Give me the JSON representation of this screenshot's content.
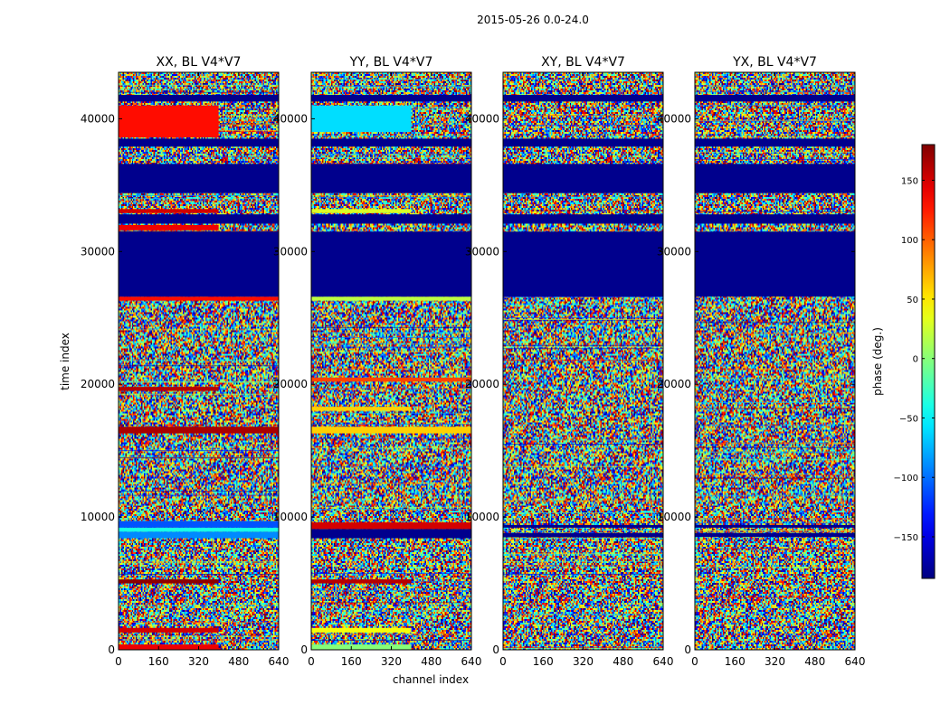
{
  "chart_data": {
    "type": "heatmap",
    "suptitle": "2015-05-26 0.0-24.0",
    "x_label": "channel index",
    "y_label": "time index",
    "x_range": [
      0,
      640
    ],
    "y_range": [
      0,
      43500
    ],
    "x_ticks": [
      0,
      160,
      320,
      480,
      640
    ],
    "y_ticks": [
      0,
      10000,
      20000,
      30000,
      40000
    ],
    "panels": [
      {
        "title": "XX, BL V4*V7",
        "bands": [
          {
            "y0": 0,
            "y1": 400,
            "value": 140,
            "x1": 400
          },
          {
            "y0": 1300,
            "y1": 1650,
            "value": 150,
            "x1": 400
          },
          {
            "y0": 5000,
            "y1": 5300,
            "value": 175,
            "x1": 400
          },
          {
            "y0": 8400,
            "y1": 8900,
            "value": -90,
            "x1": 640
          },
          {
            "y0": 8900,
            "y1": 9200,
            "value": -40,
            "x1": 640
          },
          {
            "y0": 9200,
            "y1": 9700,
            "value": -110,
            "x1": 640
          },
          {
            "y0": 16300,
            "y1": 16800,
            "value": 165,
            "x1": 640
          },
          {
            "y0": 19500,
            "y1": 19800,
            "value": 160,
            "x1": 400
          },
          {
            "y0": 26300,
            "y1": 26600,
            "value": 130,
            "x1": 640
          },
          {
            "y0": 26600,
            "y1": 31500,
            "value": -180,
            "x1": 640
          },
          {
            "y0": 31600,
            "y1": 32000,
            "value": 140,
            "x1": 400
          },
          {
            "y0": 32100,
            "y1": 32800,
            "value": -180,
            "x1": 640
          },
          {
            "y0": 32900,
            "y1": 33200,
            "value": 150,
            "x1": 400
          },
          {
            "y0": 34400,
            "y1": 36600,
            "value": -180,
            "x1": 640
          },
          {
            "y0": 37900,
            "y1": 38500,
            "value": -180,
            "x1": 640
          },
          {
            "y0": 38600,
            "y1": 41000,
            "value": 130,
            "x1": 400
          },
          {
            "y0": 41300,
            "y1": 41800,
            "value": -180,
            "x1": 640
          }
        ]
      },
      {
        "title": "YY, BL V4*V7",
        "bands": [
          {
            "y0": 0,
            "y1": 400,
            "value": 0,
            "x1": 400
          },
          {
            "y0": 1300,
            "y1": 1650,
            "value": 40,
            "x1": 400
          },
          {
            "y0": 5000,
            "y1": 5300,
            "value": 160,
            "x1": 400
          },
          {
            "y0": 8400,
            "y1": 9100,
            "value": -180,
            "x1": 640
          },
          {
            "y0": 9100,
            "y1": 9600,
            "value": 150,
            "x1": 640
          },
          {
            "y0": 16300,
            "y1": 16800,
            "value": 60,
            "x1": 640
          },
          {
            "y0": 18000,
            "y1": 18300,
            "value": 60,
            "x1": 400
          },
          {
            "y0": 20200,
            "y1": 20500,
            "value": 110,
            "x1": 640
          },
          {
            "y0": 26300,
            "y1": 26600,
            "value": 20,
            "x1": 640
          },
          {
            "y0": 26600,
            "y1": 31500,
            "value": -180,
            "x1": 640
          },
          {
            "y0": 32100,
            "y1": 32800,
            "value": -180,
            "x1": 640
          },
          {
            "y0": 32900,
            "y1": 33200,
            "value": 30,
            "x1": 400
          },
          {
            "y0": 34400,
            "y1": 36600,
            "value": -180,
            "x1": 640
          },
          {
            "y0": 37900,
            "y1": 38500,
            "value": -180,
            "x1": 640
          },
          {
            "y0": 39000,
            "y1": 41000,
            "value": -60,
            "x1": 400
          },
          {
            "y0": 41300,
            "y1": 41800,
            "value": -180,
            "x1": 640
          }
        ]
      },
      {
        "title": "XY, BL V4*V7",
        "bands": [
          {
            "y0": 8500,
            "y1": 8800,
            "value": -180,
            "x1": 640
          },
          {
            "y0": 9200,
            "y1": 9400,
            "value": -180,
            "x1": 640
          },
          {
            "y0": 26600,
            "y1": 31500,
            "value": -180,
            "x1": 640
          },
          {
            "y0": 32100,
            "y1": 32800,
            "value": -180,
            "x1": 640
          },
          {
            "y0": 34400,
            "y1": 36600,
            "value": -180,
            "x1": 640
          },
          {
            "y0": 37900,
            "y1": 38500,
            "value": -180,
            "x1": 640
          },
          {
            "y0": 41300,
            "y1": 41800,
            "value": -180,
            "x1": 640
          }
        ]
      },
      {
        "title": "YX, BL V4*V7",
        "bands": [
          {
            "y0": 8500,
            "y1": 8800,
            "value": -180,
            "x1": 640
          },
          {
            "y0": 9200,
            "y1": 9400,
            "value": -180,
            "x1": 640
          },
          {
            "y0": 26600,
            "y1": 31500,
            "value": -180,
            "x1": 640
          },
          {
            "y0": 32100,
            "y1": 32800,
            "value": -180,
            "x1": 640
          },
          {
            "y0": 34400,
            "y1": 36600,
            "value": -180,
            "x1": 640
          },
          {
            "y0": 37900,
            "y1": 38500,
            "value": -180,
            "x1": 640
          },
          {
            "y0": 41300,
            "y1": 41800,
            "value": -180,
            "x1": 640
          }
        ]
      }
    ],
    "colorbar": {
      "label": "phase (deg.)",
      "range": [
        -185,
        180
      ],
      "ticks": [
        -150,
        -100,
        -50,
        0,
        50,
        100,
        150
      ],
      "colormap": "jet"
    }
  }
}
